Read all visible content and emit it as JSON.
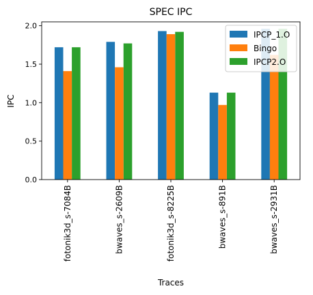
{
  "chart_data": {
    "type": "bar",
    "title": "SPEC IPC",
    "xlabel": "Traces",
    "ylabel": "IPC",
    "ylim": [
      0,
      2.05
    ],
    "yticks": [
      "0.0",
      "0.5",
      "1.0",
      "1.5",
      "2.0"
    ],
    "ytick_values": [
      0,
      0.5,
      1.0,
      1.5,
      2.0
    ],
    "grid": false,
    "legend_position": "top-right",
    "categories": [
      "fotonik3d_s-7084B",
      "bwaves_s-2609B",
      "fotonik3d_s-8225B",
      "bwaves_s-891B",
      "bwaves_s-2931B"
    ],
    "series": [
      {
        "name": "IPCP_1.O",
        "color": "#1f77b4",
        "values": [
          1.72,
          1.79,
          1.93,
          1.13,
          1.96
        ]
      },
      {
        "name": "Bingo",
        "color": "#ff7f0e",
        "values": [
          1.41,
          1.46,
          1.89,
          0.97,
          1.62
        ]
      },
      {
        "name": "IPCP2.O",
        "color": "#2ca02c",
        "values": [
          1.72,
          1.77,
          1.92,
          1.13,
          1.96
        ]
      }
    ],
    "draw_order": [
      0,
      2,
      1
    ]
  }
}
